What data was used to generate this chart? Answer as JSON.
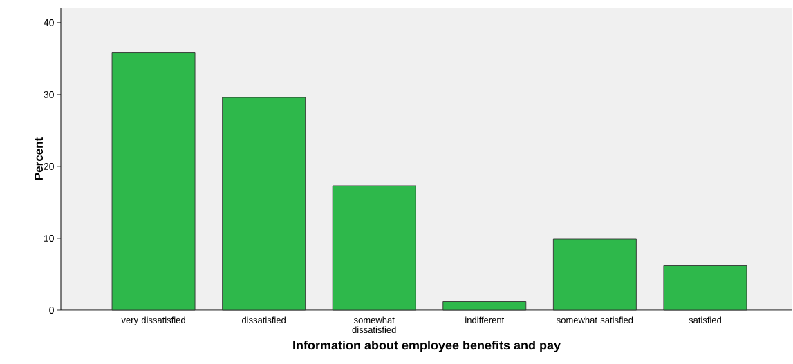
{
  "chart_data": {
    "type": "bar",
    "xlabel": "Information about employee benefits and pay",
    "ylabel": "Percent",
    "categories": [
      "very dissatisfied",
      "dissatisfied",
      "somewhat dissatisfied",
      "indifferent",
      "somewhat satisfied",
      "satisfied"
    ],
    "values": [
      35.8,
      29.6,
      17.3,
      1.2,
      9.9,
      6.2
    ],
    "color": "#2eb84b",
    "ylim": [
      0,
      42.1
    ],
    "yticks": [
      0,
      10,
      20,
      30,
      40
    ]
  }
}
